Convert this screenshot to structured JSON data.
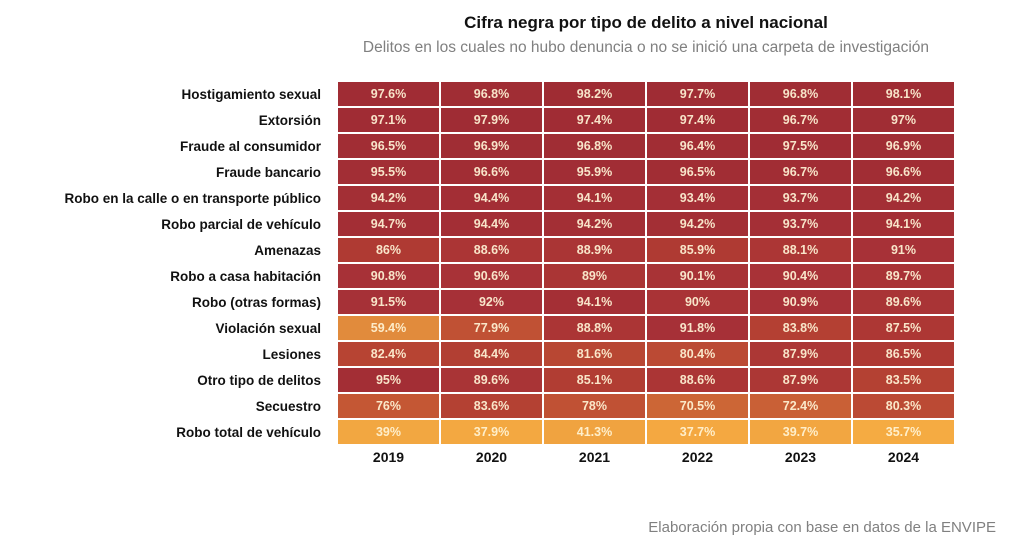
{
  "header": {
    "title": "Cifra negra por tipo de delito a nivel nacional",
    "subtitle": "Delitos en los cuales no hubo denuncia o no se inició una carpeta de investigación"
  },
  "footer": {
    "source_note": "Elaboración propia con base en datos de la ENVIPE"
  },
  "chart_data": {
    "type": "heatmap",
    "title": "Cifra negra por tipo de delito a nivel nacional",
    "subtitle": "Delitos en los cuales no hubo denuncia o no se inició una carpeta de investigación",
    "unit": "%",
    "columns": [
      "2019",
      "2020",
      "2021",
      "2022",
      "2023",
      "2024"
    ],
    "rows": [
      {
        "label": "Hostigamiento sexual",
        "values": [
          97.6,
          96.8,
          98.2,
          97.7,
          96.8,
          98.1
        ]
      },
      {
        "label": "Extorsión",
        "values": [
          97.1,
          97.9,
          97.4,
          97.4,
          96.7,
          97
        ]
      },
      {
        "label": "Fraude al consumidor",
        "values": [
          96.5,
          96.9,
          96.8,
          96.4,
          97.5,
          96.9
        ]
      },
      {
        "label": "Fraude bancario",
        "values": [
          95.5,
          96.6,
          95.9,
          96.5,
          96.7,
          96.6
        ]
      },
      {
        "label": "Robo en la calle o en transporte público",
        "values": [
          94.2,
          94.4,
          94.1,
          93.4,
          93.7,
          94.2
        ]
      },
      {
        "label": "Robo parcial de vehículo",
        "values": [
          94.7,
          94.4,
          94.2,
          94.2,
          93.7,
          94.1
        ]
      },
      {
        "label": "Amenazas",
        "values": [
          86,
          88.6,
          88.9,
          85.9,
          88.1,
          91
        ]
      },
      {
        "label": "Robo a casa habitación",
        "values": [
          90.8,
          90.6,
          89,
          90.1,
          90.4,
          89.7
        ]
      },
      {
        "label": "Robo (otras formas)",
        "values": [
          91.5,
          92,
          94.1,
          90,
          90.9,
          89.6
        ]
      },
      {
        "label": "Violación sexual",
        "values": [
          59.4,
          77.9,
          88.8,
          91.8,
          83.8,
          87.5
        ]
      },
      {
        "label": "Lesiones",
        "values": [
          82.4,
          84.4,
          81.6,
          80.4,
          87.9,
          86.5
        ]
      },
      {
        "label": "Otro tipo de delitos",
        "values": [
          95,
          89.6,
          85.1,
          88.6,
          87.9,
          83.5
        ]
      },
      {
        "label": "Secuestro",
        "values": [
          76,
          83.6,
          78,
          70.5,
          72.4,
          80.3
        ]
      },
      {
        "label": "Robo total de vehículo",
        "values": [
          39,
          37.9,
          41.3,
          37.7,
          39.7,
          35.7
        ]
      }
    ],
    "value_range": [
      35.7,
      98.2
    ],
    "grid": false,
    "legend": "none",
    "colors": {
      "cell_text": "rgba(255,244,214,0.92)",
      "label_text": "#111111",
      "muted_text": "#808080",
      "background": "#ffffff",
      "scale_stops": [
        [
          35,
          "#F6AC42"
        ],
        [
          60,
          "#E08A3C"
        ],
        [
          71,
          "#CB6436"
        ],
        [
          77,
          "#C25434"
        ],
        [
          86,
          "#AF3A33"
        ],
        [
          91,
          "#A73137"
        ],
        [
          99,
          "#9E2B33"
        ]
      ]
    }
  }
}
